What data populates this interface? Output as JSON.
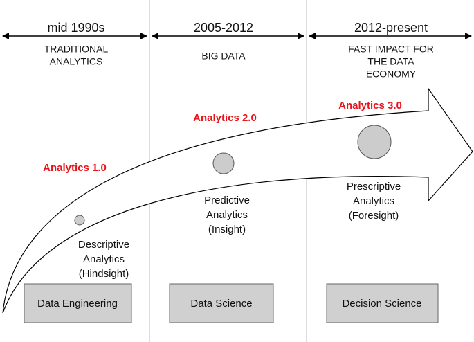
{
  "eras": [
    {
      "period": "mid 1990s",
      "label": [
        "TRADITIONAL",
        "ANALYTICS"
      ]
    },
    {
      "period": "2005-2012",
      "label": [
        "BIG DATA"
      ]
    },
    {
      "period": "2012-present",
      "label": [
        "FAST IMPACT FOR",
        "THE DATA",
        "ECONOMY"
      ]
    }
  ],
  "stages": [
    {
      "name": "Analytics 1.0",
      "description": [
        "Descriptive",
        "Analytics",
        "(Hindsight)"
      ]
    },
    {
      "name": "Analytics 2.0",
      "description": [
        "Predictive",
        "Analytics",
        "(Insight)"
      ]
    },
    {
      "name": "Analytics 3.0",
      "description": [
        "Prescriptive",
        "Analytics",
        "(Foresight)"
      ]
    }
  ],
  "boxes": [
    "Data Engineering",
    "Data Science",
    "Decision Science"
  ]
}
